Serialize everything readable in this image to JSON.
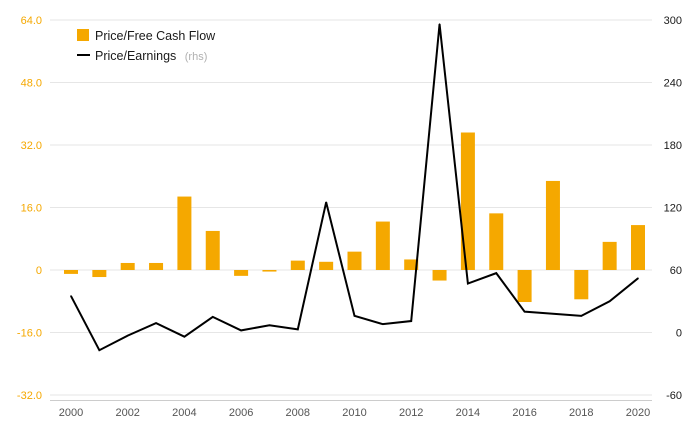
{
  "chart_data": {
    "type": "bar",
    "x": [
      2000,
      2001,
      2002,
      2003,
      2004,
      2005,
      2006,
      2007,
      2008,
      2009,
      2010,
      2011,
      2012,
      2013,
      2014,
      2015,
      2016,
      2017,
      2018,
      2019,
      2020
    ],
    "series": [
      {
        "name": "Price/Free Cash Flow",
        "type": "bar",
        "axis": "left",
        "color": "#f5a800",
        "values": [
          -1.0,
          -1.8,
          1.8,
          1.8,
          18.8,
          10.0,
          -1.5,
          -0.4,
          2.4,
          2.1,
          4.7,
          12.4,
          2.7,
          -2.7,
          35.2,
          14.5,
          -8.2,
          22.8,
          -7.5,
          7.2,
          11.5
        ]
      },
      {
        "name": "Price/Earnings",
        "name_note": "(rhs)",
        "type": "line",
        "axis": "right",
        "color": "#000000",
        "values": [
          35,
          -17,
          -3,
          9,
          -4,
          15,
          2,
          7,
          3,
          125,
          16,
          8,
          11,
          296,
          47,
          57,
          20,
          18,
          16,
          30,
          52
        ]
      }
    ],
    "y_left": {
      "ylim": [
        -32,
        64
      ],
      "ticks": [
        "-32.0",
        "-16.0",
        "0",
        "16.0",
        "32.0",
        "48.0",
        "64.0"
      ],
      "color": "#f5a800"
    },
    "y_right": {
      "ylim": [
        -60,
        300
      ],
      "ticks": [
        "-60",
        "0",
        "60",
        "120",
        "180",
        "240",
        "300"
      ]
    },
    "x_ticks": [
      "2000",
      "2002",
      "2004",
      "2006",
      "2008",
      "2010",
      "2012",
      "2014",
      "2016",
      "2018",
      "2020"
    ],
    "grid": true,
    "legend_position": "top-left"
  }
}
